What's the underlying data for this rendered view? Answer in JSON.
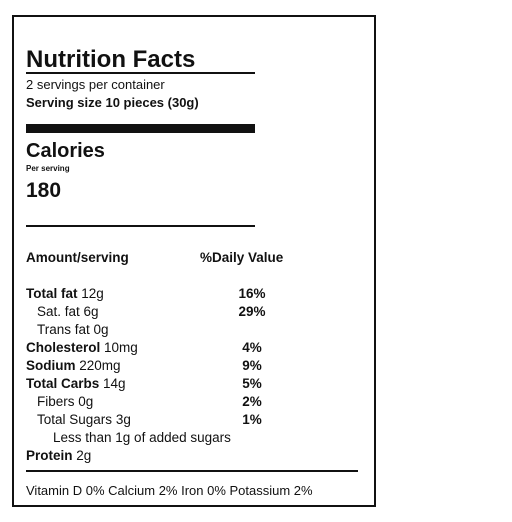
{
  "header": {
    "title": "Nutrition Facts",
    "servings": "2 servings per container",
    "serving_size": "Serving size 10 pieces (30g)"
  },
  "calories": {
    "label": "Calories",
    "per": "Per serving",
    "value": "180"
  },
  "table": {
    "columns": [
      "Amount/serving",
      "%Daily Value"
    ],
    "rows": [
      {
        "name": "Total fat",
        "amount": "12g",
        "dv": "16%"
      },
      {
        "name": "Sat. fat",
        "amount": "6g",
        "dv": "29%"
      },
      {
        "name": "Trans fat",
        "amount": "0g"
      },
      {
        "name": "Cholesterol",
        "amount": "10mg",
        "dv": "4%"
      },
      {
        "name": "Sodium",
        "amount": "220mg",
        "dv": "9%"
      },
      {
        "name": "Total Carbs",
        "amount": "14g",
        "dv": "5%"
      },
      {
        "name": "Fibers",
        "amount": "0g",
        "dv": "2%"
      },
      {
        "name": "Total Sugars",
        "amount": "3g",
        "dv": "1%"
      },
      {
        "text": "Less than 1g of added sugars"
      },
      {
        "name": "Protein",
        "amount": "2g"
      }
    ]
  },
  "footer": "Vitamin D 0% Calcium 2% Iron 0% Potassium 2%"
}
